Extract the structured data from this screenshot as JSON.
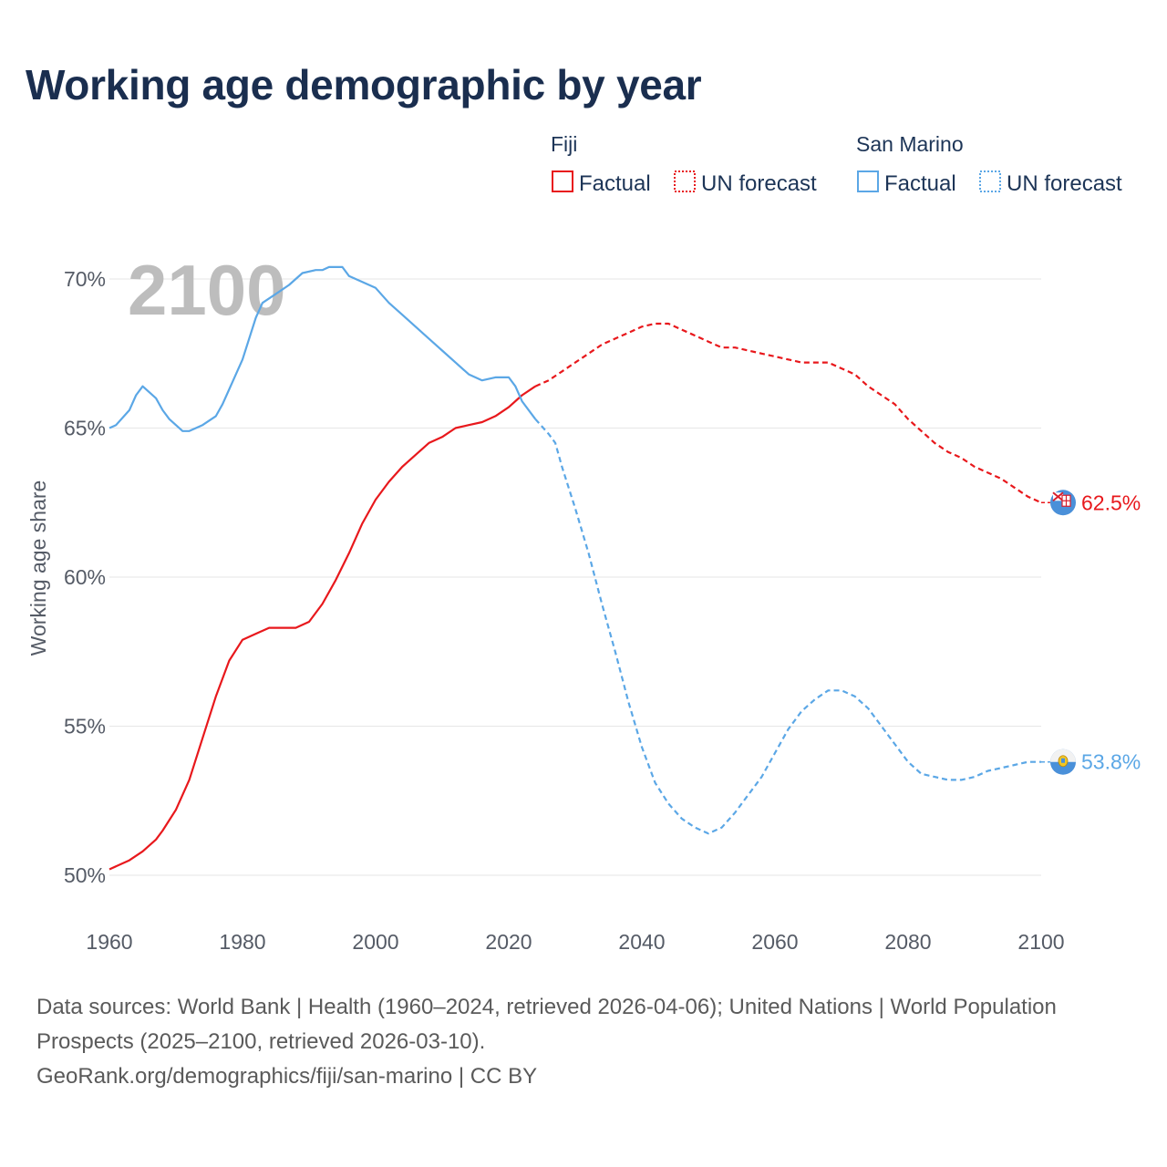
{
  "title": "Working age demographic by year",
  "footer": {
    "sources": "Data sources: World Bank | Health (1960–2024, retrieved 2026-04-06); United Nations | World Population Prospects (2025–2100, retrieved 2026-03-10).",
    "attribution": "GeoRank.org/demographics/fiji/san-marino | CC BY"
  },
  "legend": {
    "groups": [
      {
        "name": "Fiji",
        "color": "#e8181c",
        "factual_label": "Factual",
        "forecast_label": "UN forecast"
      },
      {
        "name": "San Marino",
        "color": "#5ba7e6",
        "factual_label": "Factual",
        "forecast_label": "UN forecast"
      }
    ]
  },
  "colors": {
    "fiji": "#e8181c",
    "san_marino": "#5ba7e6",
    "title": "#1a2e4f",
    "grid": "#e6e6e6",
    "watermark": "#bdbdbd"
  },
  "chart_data": {
    "type": "line",
    "title": "Working age demographic by year",
    "xlabel": "",
    "ylabel": "Working age share",
    "year_watermark": "2100",
    "xlim": [
      1960,
      2100
    ],
    "ylim": [
      50,
      70
    ],
    "x_ticks": [
      1960,
      1980,
      2000,
      2020,
      2040,
      2060,
      2080,
      2100
    ],
    "y_ticks": [
      50,
      55,
      60,
      65,
      70
    ],
    "y_tick_labels": [
      "50%",
      "55%",
      "60%",
      "65%",
      "70%"
    ],
    "grid": "horizontal",
    "factual_end_year": 2024,
    "series": [
      {
        "name": "Fiji",
        "color": "#e8181c",
        "end_label": "62.5%",
        "end_icon": "fiji-flag-icon",
        "points": [
          [
            1960,
            50.2
          ],
          [
            1963,
            50.5
          ],
          [
            1965,
            50.8
          ],
          [
            1967,
            51.2
          ],
          [
            1968,
            51.5
          ],
          [
            1970,
            52.2
          ],
          [
            1972,
            53.2
          ],
          [
            1974,
            54.6
          ],
          [
            1976,
            56.0
          ],
          [
            1978,
            57.2
          ],
          [
            1980,
            57.9
          ],
          [
            1982,
            58.1
          ],
          [
            1984,
            58.3
          ],
          [
            1986,
            58.3
          ],
          [
            1988,
            58.3
          ],
          [
            1990,
            58.5
          ],
          [
            1992,
            59.1
          ],
          [
            1994,
            59.9
          ],
          [
            1996,
            60.8
          ],
          [
            1998,
            61.8
          ],
          [
            2000,
            62.6
          ],
          [
            2002,
            63.2
          ],
          [
            2004,
            63.7
          ],
          [
            2006,
            64.1
          ],
          [
            2008,
            64.5
          ],
          [
            2010,
            64.7
          ],
          [
            2012,
            65.0
          ],
          [
            2014,
            65.1
          ],
          [
            2016,
            65.2
          ],
          [
            2018,
            65.4
          ],
          [
            2020,
            65.7
          ],
          [
            2022,
            66.1
          ],
          [
            2024,
            66.4
          ],
          [
            2026,
            66.6
          ],
          [
            2028,
            66.9
          ],
          [
            2030,
            67.2
          ],
          [
            2032,
            67.5
          ],
          [
            2034,
            67.8
          ],
          [
            2036,
            68.0
          ],
          [
            2038,
            68.2
          ],
          [
            2040,
            68.4
          ],
          [
            2042,
            68.5
          ],
          [
            2044,
            68.5
          ],
          [
            2046,
            68.3
          ],
          [
            2048,
            68.1
          ],
          [
            2050,
            67.9
          ],
          [
            2052,
            67.7
          ],
          [
            2054,
            67.7
          ],
          [
            2056,
            67.6
          ],
          [
            2058,
            67.5
          ],
          [
            2060,
            67.4
          ],
          [
            2062,
            67.3
          ],
          [
            2064,
            67.2
          ],
          [
            2066,
            67.2
          ],
          [
            2068,
            67.2
          ],
          [
            2070,
            67.0
          ],
          [
            2072,
            66.8
          ],
          [
            2074,
            66.4
          ],
          [
            2076,
            66.1
          ],
          [
            2078,
            65.8
          ],
          [
            2080,
            65.3
          ],
          [
            2082,
            64.9
          ],
          [
            2084,
            64.5
          ],
          [
            2086,
            64.2
          ],
          [
            2088,
            64.0
          ],
          [
            2090,
            63.7
          ],
          [
            2092,
            63.5
          ],
          [
            2094,
            63.3
          ],
          [
            2096,
            63.0
          ],
          [
            2098,
            62.7
          ],
          [
            2100,
            62.5
          ]
        ]
      },
      {
        "name": "San Marino",
        "color": "#5ba7e6",
        "end_label": "53.8%",
        "end_icon": "san-marino-flag-icon",
        "points": [
          [
            1960,
            65.0
          ],
          [
            1961,
            65.1
          ],
          [
            1963,
            65.6
          ],
          [
            1964,
            66.1
          ],
          [
            1965,
            66.4
          ],
          [
            1967,
            66.0
          ],
          [
            1968,
            65.6
          ],
          [
            1969,
            65.3
          ],
          [
            1971,
            64.9
          ],
          [
            1972,
            64.9
          ],
          [
            1974,
            65.1
          ],
          [
            1976,
            65.4
          ],
          [
            1977,
            65.8
          ],
          [
            1978,
            66.3
          ],
          [
            1980,
            67.3
          ],
          [
            1982,
            68.7
          ],
          [
            1983,
            69.2
          ],
          [
            1985,
            69.5
          ],
          [
            1987,
            69.8
          ],
          [
            1989,
            70.2
          ],
          [
            1991,
            70.3
          ],
          [
            1992,
            70.3
          ],
          [
            1993,
            70.4
          ],
          [
            1995,
            70.4
          ],
          [
            1996,
            70.1
          ],
          [
            1998,
            69.9
          ],
          [
            2000,
            69.7
          ],
          [
            2002,
            69.2
          ],
          [
            2004,
            68.8
          ],
          [
            2006,
            68.4
          ],
          [
            2008,
            68.0
          ],
          [
            2010,
            67.6
          ],
          [
            2012,
            67.2
          ],
          [
            2014,
            66.8
          ],
          [
            2016,
            66.6
          ],
          [
            2018,
            66.7
          ],
          [
            2020,
            66.7
          ],
          [
            2021,
            66.4
          ],
          [
            2022,
            65.9
          ],
          [
            2024,
            65.3
          ],
          [
            2026,
            64.8
          ],
          [
            2027,
            64.5
          ],
          [
            2028,
            63.7
          ],
          [
            2030,
            62.3
          ],
          [
            2032,
            60.8
          ],
          [
            2034,
            59.1
          ],
          [
            2036,
            57.5
          ],
          [
            2038,
            55.8
          ],
          [
            2040,
            54.3
          ],
          [
            2042,
            53.1
          ],
          [
            2044,
            52.4
          ],
          [
            2046,
            51.9
          ],
          [
            2048,
            51.6
          ],
          [
            2050,
            51.4
          ],
          [
            2052,
            51.6
          ],
          [
            2054,
            52.1
          ],
          [
            2056,
            52.7
          ],
          [
            2058,
            53.3
          ],
          [
            2060,
            54.1
          ],
          [
            2062,
            54.9
          ],
          [
            2064,
            55.5
          ],
          [
            2066,
            55.9
          ],
          [
            2068,
            56.2
          ],
          [
            2070,
            56.2
          ],
          [
            2072,
            56.0
          ],
          [
            2074,
            55.6
          ],
          [
            2076,
            55.0
          ],
          [
            2078,
            54.4
          ],
          [
            2080,
            53.8
          ],
          [
            2082,
            53.4
          ],
          [
            2084,
            53.3
          ],
          [
            2086,
            53.2
          ],
          [
            2088,
            53.2
          ],
          [
            2090,
            53.3
          ],
          [
            2092,
            53.5
          ],
          [
            2094,
            53.6
          ],
          [
            2096,
            53.7
          ],
          [
            2098,
            53.8
          ],
          [
            2100,
            53.8
          ]
        ]
      }
    ]
  }
}
